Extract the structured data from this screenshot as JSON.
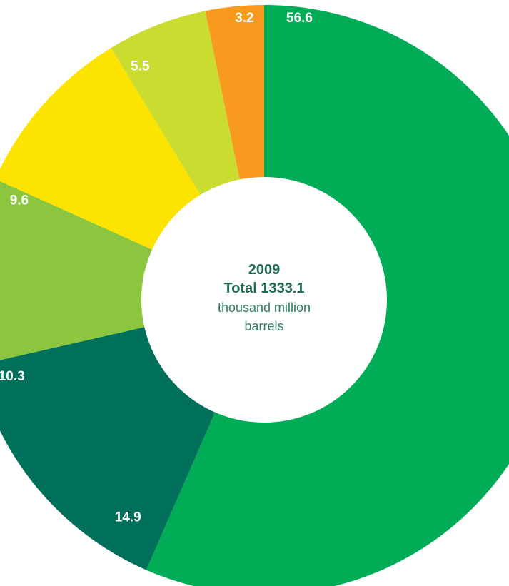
{
  "chart_data": {
    "type": "pie",
    "style": "donut",
    "center": {
      "year": "2009",
      "total": "Total 1333.1",
      "unit_line1": "thousand million",
      "unit_line2": "barrels"
    },
    "slices": [
      {
        "value": 56.6,
        "label": "56.6",
        "color": "#00ac55"
      },
      {
        "value": 14.9,
        "label": "14.9",
        "color": "#00705a"
      },
      {
        "value": 10.3,
        "label": "10.3",
        "color": "#8cc63f"
      },
      {
        "value": 9.6,
        "label": "9.6",
        "color": "#fde300"
      },
      {
        "value": 5.5,
        "label": "5.5",
        "color": "#c9dc2f"
      },
      {
        "value": 3.2,
        "label": "3.2",
        "color": "#f79a1e"
      }
    ]
  }
}
